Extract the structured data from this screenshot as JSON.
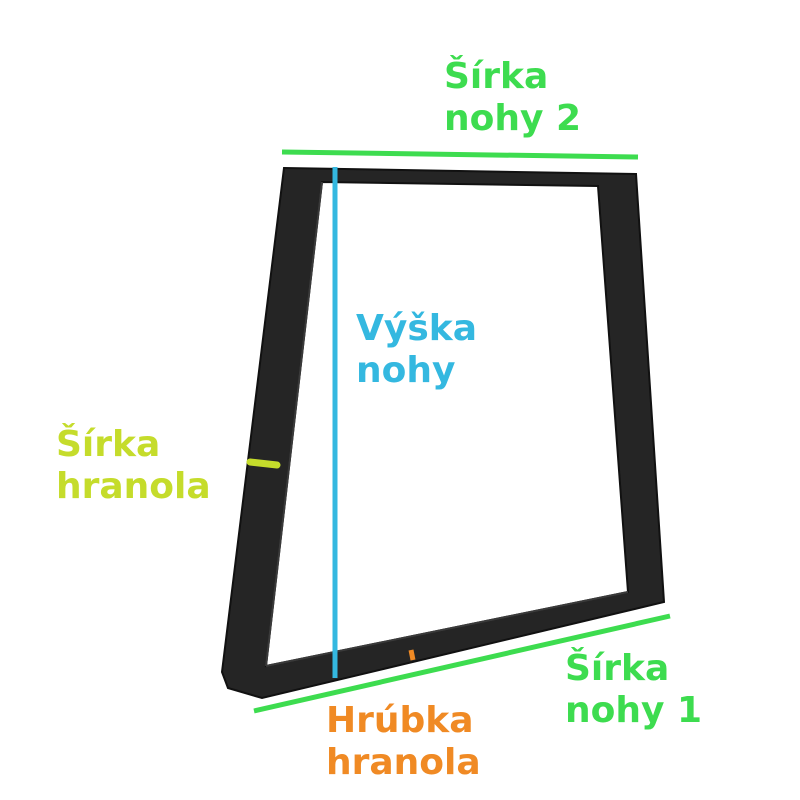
{
  "labels": {
    "width_leg_2": {
      "line1": "Šírka",
      "line2": "nohy 2"
    },
    "height_leg": {
      "line1": "Výška",
      "line2": "nohy"
    },
    "width_profile": {
      "line1": "Šírka",
      "line2": "hranola"
    },
    "width_leg_1": {
      "line1": "Šírka",
      "line2": "nohy 1"
    },
    "thickness_profile": {
      "line1": "Hrúbka",
      "line2": "hranola"
    }
  },
  "colors": {
    "width_leg": "#3ddc4f",
    "height": "#34b8e0",
    "profile_width": "#c5dc2b",
    "thickness": "#f08a24",
    "frame": "#252525",
    "frame_edge": "#111111"
  },
  "icons": {
    "frame": "trapezoid-table-leg-icon"
  }
}
